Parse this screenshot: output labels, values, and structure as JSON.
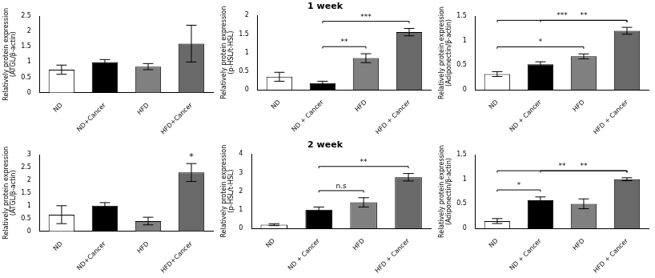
{
  "chart_data": [
    {
      "type": "bar",
      "categories": [
        "ND",
        "ND+Cancer",
        "HFD",
        "HFD+Cancer"
      ],
      "values": [
        0.75,
        1.0,
        0.85,
        1.6
      ],
      "errors": [
        0.15,
        0.08,
        0.1,
        0.6
      ],
      "colors": [
        "white",
        "black",
        "gray",
        "dimgray"
      ],
      "ylabel": "Relatively protein expression\n(ATGL/β-actin)",
      "ylim": [
        0,
        2.5
      ],
      "yticks": [
        0,
        0.5,
        1,
        1.5,
        2,
        2.5
      ],
      "grid": false
    },
    {
      "type": "bar",
      "title": "1 week",
      "categories": [
        "ND",
        "ND + Cancer",
        "HFD",
        "HFD + Cancer"
      ],
      "values": [
        0.35,
        0.18,
        0.85,
        1.55
      ],
      "errors": [
        0.12,
        0.05,
        0.12,
        0.1
      ],
      "colors": [
        "white",
        "black",
        "gray",
        "dimgray"
      ],
      "ylabel": "Relatively protein expression\n(p-HSL/t-HSL)",
      "ylim": [
        0,
        2.0
      ],
      "yticks": [
        0,
        0.5,
        1,
        1.5,
        2
      ],
      "grid": false,
      "annotations": [
        {
          "from": "ND + Cancer",
          "to": "HFD + Cancer",
          "text": "***"
        },
        {
          "from": "ND + Cancer",
          "to": "HFD",
          "text": "**"
        }
      ]
    },
    {
      "type": "bar",
      "categories": [
        "ND",
        "ND + Cancer",
        "HFD",
        "HFD + Cancer"
      ],
      "values": [
        0.32,
        0.52,
        0.68,
        1.2
      ],
      "errors": [
        0.05,
        0.05,
        0.05,
        0.07
      ],
      "colors": [
        "white",
        "black",
        "gray",
        "dimgray"
      ],
      "ylabel": "Relatively protein expression\n(Adiponectin/β-actin)",
      "ylim": [
        0,
        1.5
      ],
      "yticks": [
        0,
        0.5,
        1,
        1.5
      ],
      "grid": false,
      "annotations": [
        {
          "from": "ND",
          "to": "HFD + Cancer",
          "text": "***"
        },
        {
          "from": "ND + Cancer",
          "to": "HFD + Cancer",
          "text": "**"
        },
        {
          "from": "ND",
          "to": "HFD",
          "text": "*"
        }
      ]
    },
    {
      "type": "bar",
      "categories": [
        "ND",
        "ND+Cancer",
        "HFD",
        "HFD+Cancer"
      ],
      "values": [
        0.65,
        1.0,
        0.4,
        2.3
      ],
      "errors": [
        0.35,
        0.12,
        0.15,
        0.35
      ],
      "colors": [
        "white",
        "black",
        "gray",
        "dimgray"
      ],
      "ylabel": "Relatively protein expression\n(ATGL/β-actin)",
      "ylim": [
        0,
        3.0
      ],
      "yticks": [
        0,
        0.5,
        1,
        1.5,
        2,
        2.5,
        3
      ],
      "grid": false,
      "annotations": [
        {
          "at": "HFD+Cancer",
          "text": "*"
        }
      ]
    },
    {
      "type": "bar",
      "title": "2 week",
      "categories": [
        "ND",
        "ND + Cancer",
        "HFD",
        "HFD + Cancer"
      ],
      "values": [
        0.2,
        1.0,
        1.4,
        2.75
      ],
      "errors": [
        0.05,
        0.15,
        0.25,
        0.2
      ],
      "colors": [
        "white",
        "black",
        "gray",
        "dimgray"
      ],
      "ylabel": "Relatively protein expression\n(p-HSL/t-HSL)",
      "ylim": [
        0,
        4.0
      ],
      "yticks": [
        0,
        1,
        2,
        3,
        4
      ],
      "grid": false,
      "annotations": [
        {
          "from": "ND + Cancer",
          "to": "HFD + Cancer",
          "text": "**"
        },
        {
          "from": "ND + Cancer",
          "to": "HFD",
          "text": "n.s"
        }
      ]
    },
    {
      "type": "bar",
      "categories": [
        "ND",
        "ND + Cancer",
        "HFD",
        "HFD + Cancer"
      ],
      "values": [
        0.15,
        0.57,
        0.5,
        1.0
      ],
      "errors": [
        0.05,
        0.07,
        0.1,
        0.03
      ],
      "colors": [
        "white",
        "black",
        "gray",
        "dimgray"
      ],
      "ylabel": "Relatively protein expression\n(Adiponectin/β-actin)",
      "ylim": [
        0,
        1.5
      ],
      "yticks": [
        0,
        0.5,
        1,
        1.5
      ],
      "grid": false,
      "annotations": [
        {
          "from": "ND",
          "to": "HFD + Cancer",
          "text": "**"
        },
        {
          "from": "ND + Cancer",
          "to": "HFD + Cancer",
          "text": "**"
        },
        {
          "from": "ND",
          "to": "ND + Cancer",
          "text": "*"
        }
      ]
    }
  ]
}
